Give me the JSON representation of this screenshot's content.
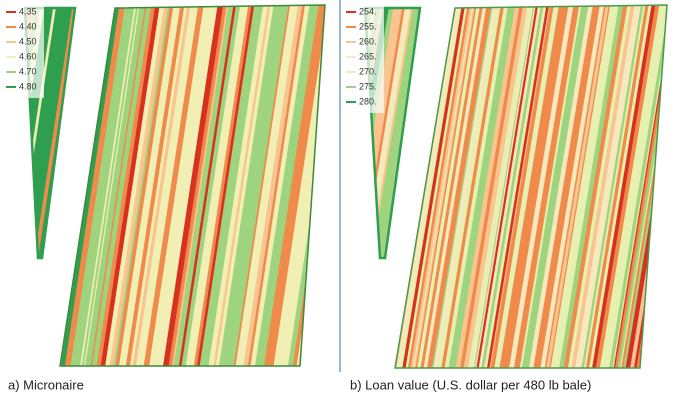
{
  "panels": [
    {
      "caption": "a) Micronaire",
      "legend": [
        {
          "label": "4.35",
          "color": "#d7301f"
        },
        {
          "label": "4.40",
          "color": "#f08a4b"
        },
        {
          "label": "4.50",
          "color": "#f9c48f"
        },
        {
          "label": "4.60",
          "color": "#f1efb3"
        },
        {
          "label": "4.70",
          "color": "#9fd47f"
        },
        {
          "label": "4.80",
          "color": "#2e9e4f"
        }
      ]
    },
    {
      "caption": "b) Loan value (U.S. dollar per 480 lb bale)",
      "legend": [
        {
          "label": "254.",
          "color": "#d7301f"
        },
        {
          "label": "255.",
          "color": "#f08a4b"
        },
        {
          "label": "260.",
          "color": "#f9c48f"
        },
        {
          "label": "265.",
          "color": "#f5e9bd"
        },
        {
          "label": "270.",
          "color": "#e6f0b0"
        },
        {
          "label": "275.",
          "color": "#9fd47f"
        },
        {
          "label": "280.",
          "color": "#2e9e4f"
        }
      ]
    }
  ]
}
